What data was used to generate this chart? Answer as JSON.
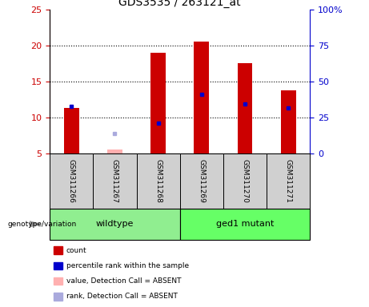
{
  "title": "GDS3535 / 263121_at",
  "samples": [
    "GSM311266",
    "GSM311267",
    "GSM311268",
    "GSM311269",
    "GSM311270",
    "GSM311271"
  ],
  "count_values": [
    11.3,
    5.6,
    19.0,
    20.5,
    17.5,
    13.8
  ],
  "rank_values": [
    11.5,
    7.8,
    9.2,
    13.2,
    11.9,
    11.3
  ],
  "absent": [
    false,
    true,
    false,
    false,
    false,
    false
  ],
  "ylim_left": [
    5,
    25
  ],
  "ylim_right": [
    0,
    100
  ],
  "yticks_left": [
    5,
    10,
    15,
    20,
    25
  ],
  "ytick_labels_left": [
    "5",
    "10",
    "15",
    "20",
    "25"
  ],
  "yticks_right": [
    0,
    25,
    50,
    75,
    100
  ],
  "ytick_labels_right": [
    "0",
    "25",
    "50",
    "75",
    "100%"
  ],
  "bar_width": 0.35,
  "bar_color_present": "#CC0000",
  "bar_color_absent": "#FFB0B0",
  "dot_color_present": "#0000CC",
  "dot_color_absent": "#AAAADD",
  "sample_box_color": "#D0D0D0",
  "wildtype_color": "#90EE90",
  "mutant_color": "#66FF66",
  "group_defs": [
    {
      "label": "wildtype",
      "start": 0,
      "end": 2,
      "color": "#90EE90"
    },
    {
      "label": "ged1 mutant",
      "start": 3,
      "end": 5,
      "color": "#66FF66"
    }
  ],
  "legend_items": [
    {
      "label": "count",
      "color": "#CC0000"
    },
    {
      "label": "percentile rank within the sample",
      "color": "#0000CC"
    },
    {
      "label": "value, Detection Call = ABSENT",
      "color": "#FFB0B0"
    },
    {
      "label": "rank, Detection Call = ABSENT",
      "color": "#AAAADD"
    }
  ],
  "genotype_label": "genotype/variation"
}
